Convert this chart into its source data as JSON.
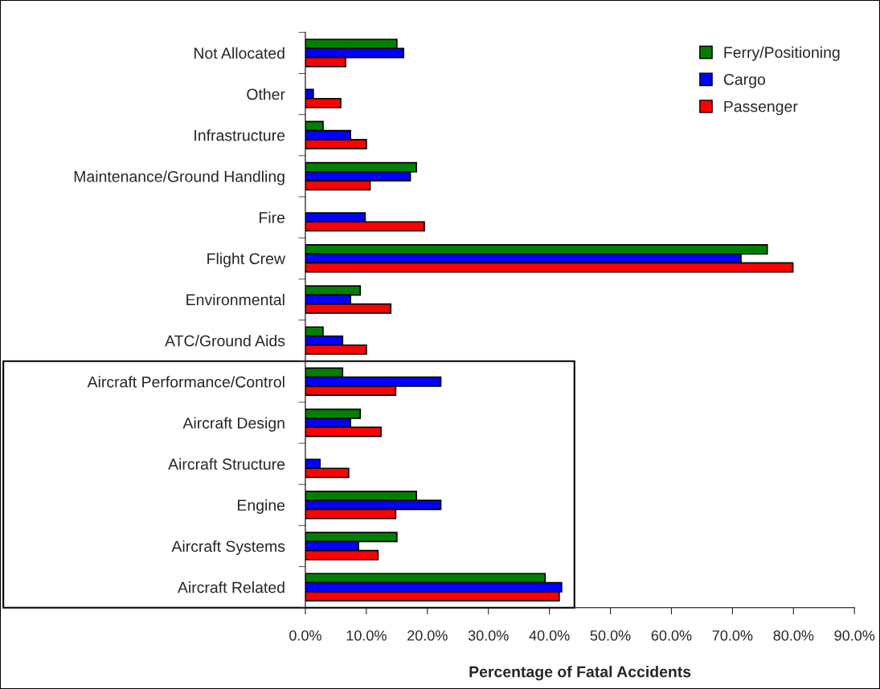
{
  "chart_data": {
    "type": "bar",
    "orientation": "horizontal",
    "xlabel": "Percentage of Fatal Accidents",
    "categories": [
      "Not Allocated",
      "Other",
      "Infrastructure",
      "Maintenance/Ground Handling",
      "Fire",
      "Flight Crew",
      "Environmental",
      "ATC/Ground Aids",
      "Aircraft Performance/Control",
      "Aircraft Design",
      "Aircraft Structure",
      "Engine",
      "Aircraft Systems",
      "Aircraft Related"
    ],
    "series": [
      {
        "name": "Ferry/Positioning",
        "color": "#008000",
        "values": [
          15.0,
          null,
          2.9,
          18.2,
          null,
          75.7,
          9.0,
          2.9,
          6.1,
          9.0,
          null,
          18.2,
          15.0,
          39.3
        ]
      },
      {
        "name": "Cargo",
        "color": "#0000ff",
        "values": [
          16.1,
          1.3,
          7.4,
          17.2,
          9.8,
          71.4,
          7.4,
          6.1,
          22.2,
          7.4,
          2.4,
          22.2,
          8.7,
          42.0
        ]
      },
      {
        "name": "Passenger",
        "color": "#ff0000",
        "values": [
          6.6,
          5.8,
          10.0,
          10.6,
          19.5,
          79.9,
          14.0,
          10.0,
          14.8,
          12.4,
          7.1,
          14.8,
          11.9,
          41.6
        ]
      }
    ],
    "xlim": [
      0,
      90
    ],
    "xticks": [
      {
        "value": 0,
        "label": "0.0%"
      },
      {
        "value": 10,
        "label": "10.0%"
      },
      {
        "value": 20,
        "label": "20.0%"
      },
      {
        "value": 30,
        "label": "30.0%"
      },
      {
        "value": 40,
        "label": "40.0%"
      },
      {
        "value": 50,
        "label": "50.0%"
      },
      {
        "value": 60,
        "label": "60.0%"
      },
      {
        "value": 70,
        "label": "70.0%"
      },
      {
        "value": 80,
        "label": "80.0%"
      },
      {
        "value": 90,
        "label": "90.0%"
      }
    ],
    "grid": false,
    "legend": "top right"
  }
}
